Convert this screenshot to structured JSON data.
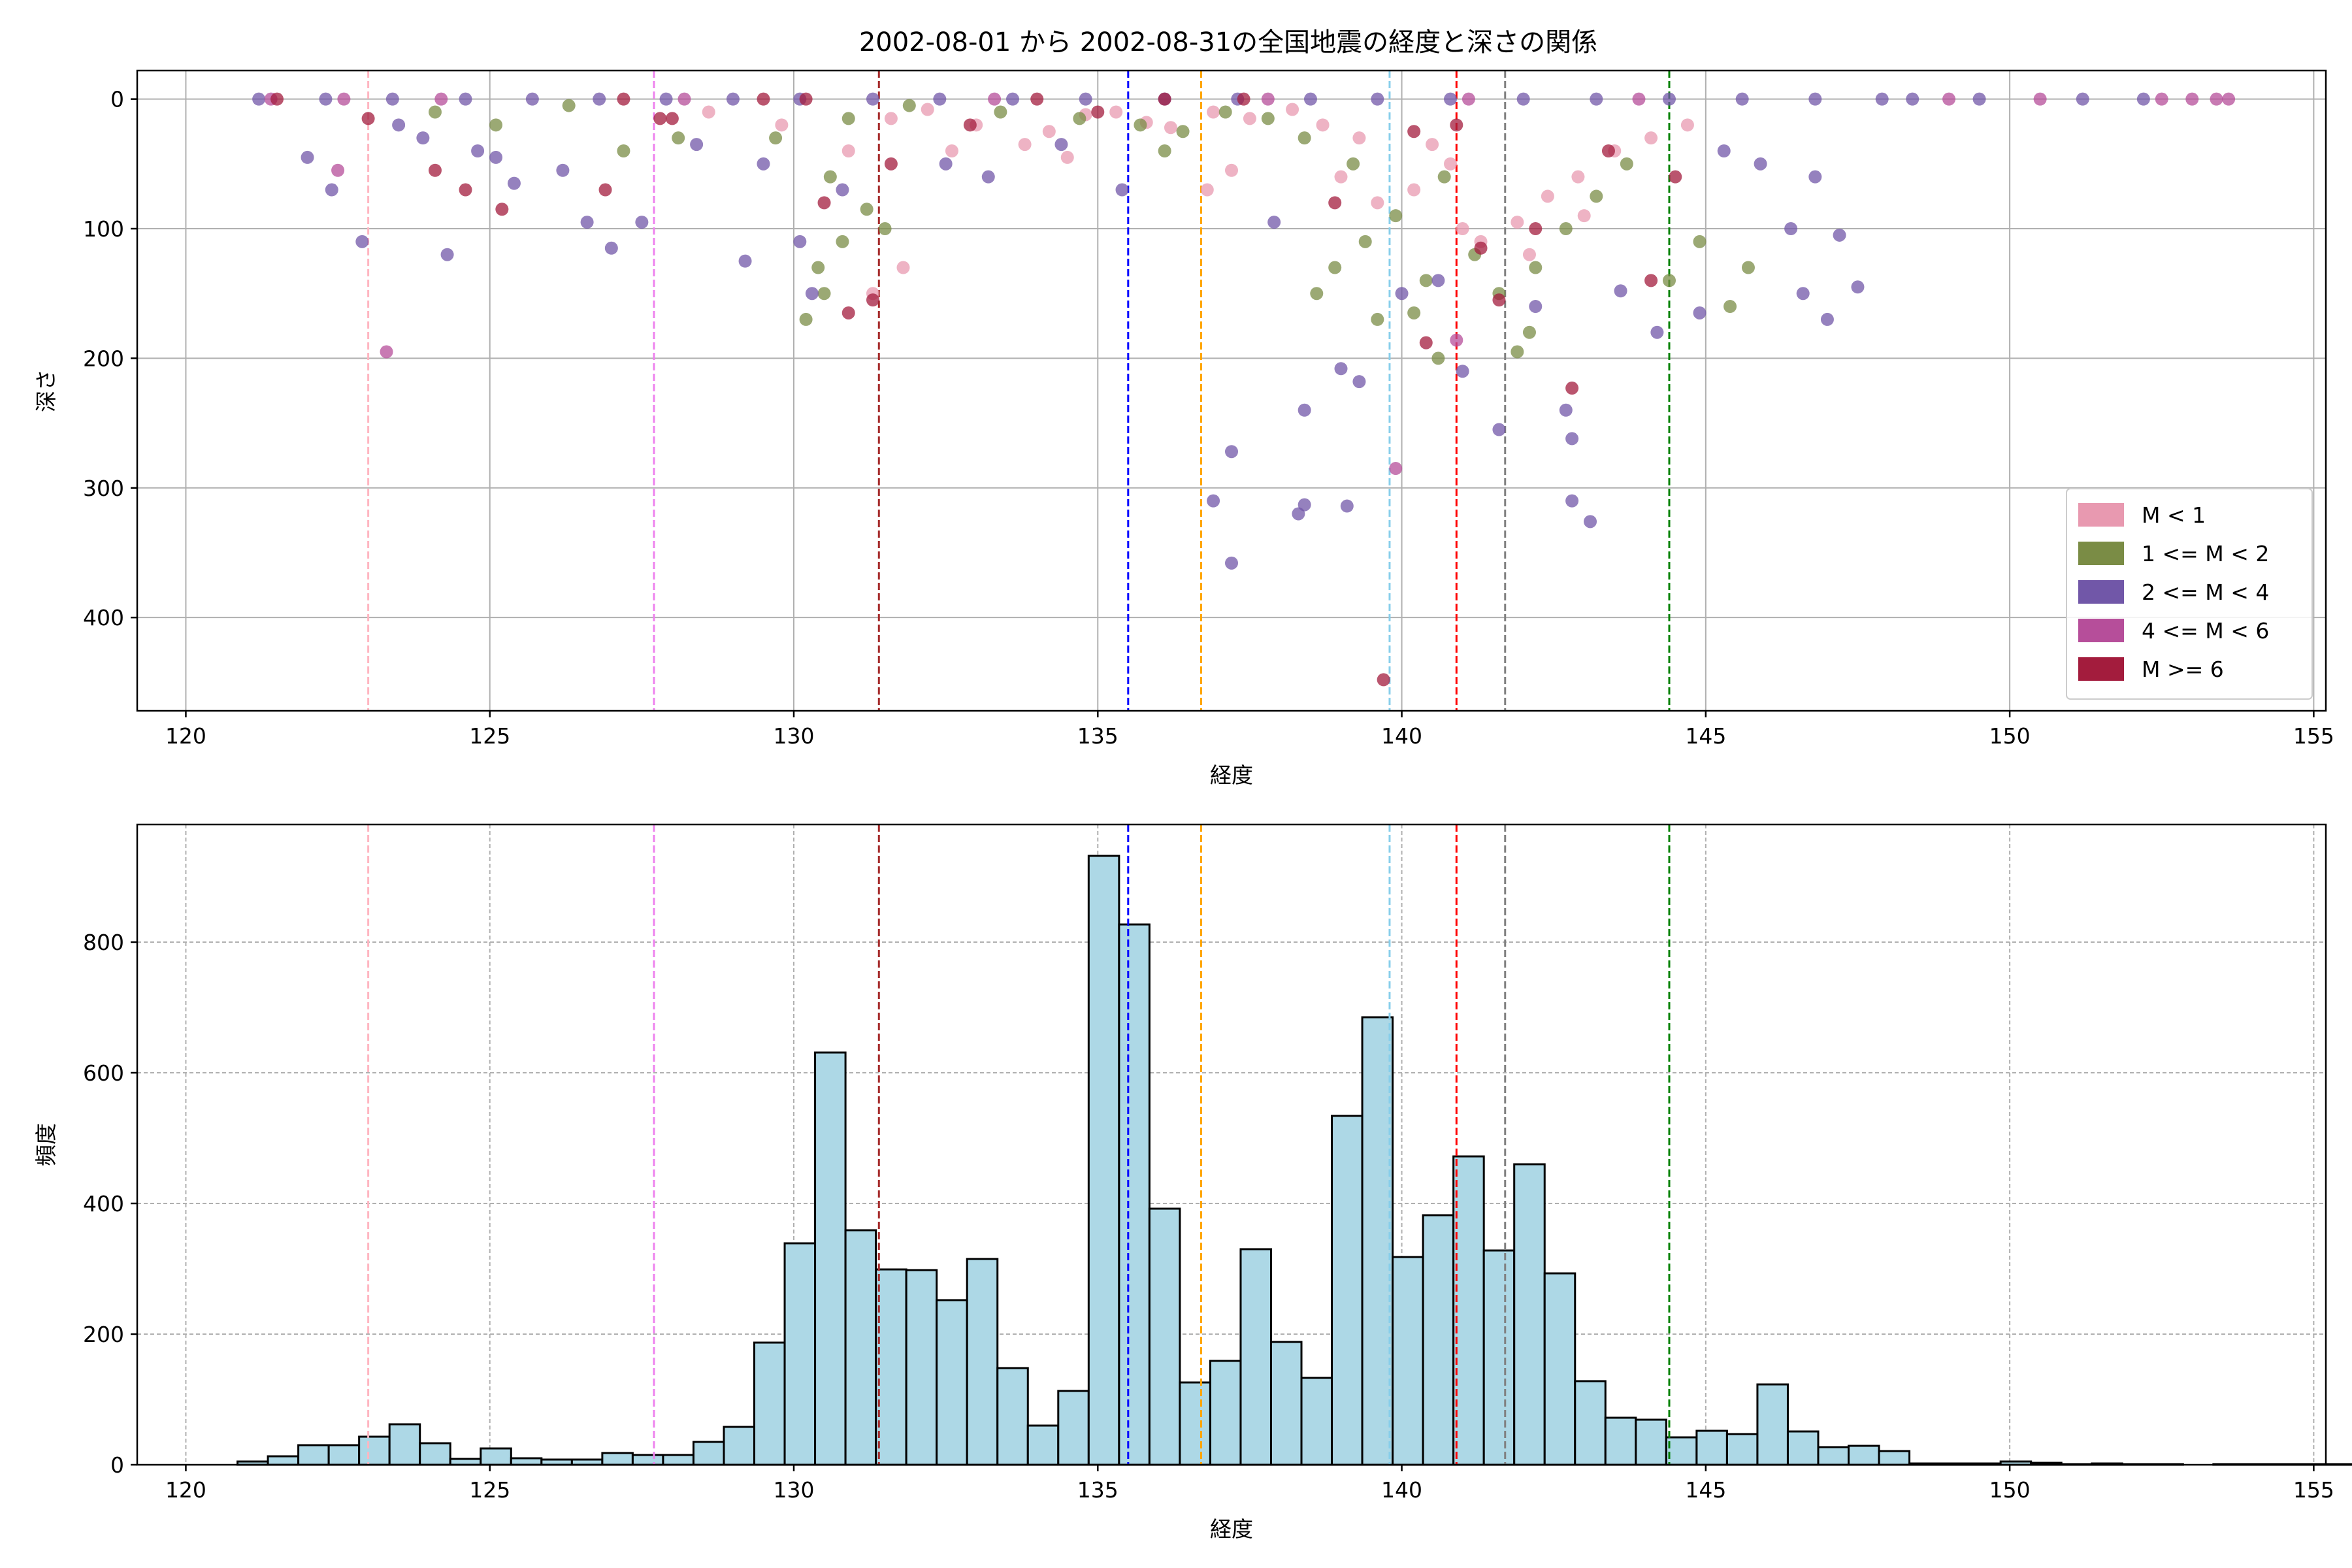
{
  "title": "2002-08-01 から 2002-08-31の全国地震の経度と深さの関係",
  "colors": {
    "m_lt1": "#e899b0",
    "m_1_2": "#7a8c45",
    "m_2_4": "#7157a8",
    "m_4_6": "#b64e9a",
    "m_ge6": "#a31c3d",
    "hist_fill": "#add8e6",
    "hist_edge": "#000000"
  },
  "chart_data": [
    {
      "type": "scatter",
      "xlabel": "経度",
      "ylabel": "深さ",
      "xlim": [
        119.2,
        155.2
      ],
      "ylim": [
        472,
        -22
      ],
      "y_inverted": true,
      "xticks": [
        120,
        125,
        130,
        135,
        140,
        145,
        150,
        155
      ],
      "yticks": [
        0,
        100,
        200,
        300,
        400
      ],
      "grid": true,
      "legend_position": "lower right",
      "legend": [
        "M < 1",
        "1 <= M < 2",
        "2 <= M < 4",
        "4 <= M < 6",
        "M >= 6"
      ],
      "vlines": [
        {
          "x": 123.0,
          "color": "#ffb6c1"
        },
        {
          "x": 127.7,
          "color": "#ee82ee"
        },
        {
          "x": 131.4,
          "color": "#a52a2a"
        },
        {
          "x": 135.5,
          "color": "#0000ff"
        },
        {
          "x": 136.7,
          "color": "#ffa500"
        },
        {
          "x": 139.8,
          "color": "#87ceeb"
        },
        {
          "x": 140.9,
          "color": "#ff0000"
        },
        {
          "x": 141.7,
          "color": "#808080"
        },
        {
          "x": 144.4,
          "color": "#008000"
        }
      ],
      "series": [
        {
          "name": "M < 1",
          "color": "#e899b0",
          "points": [
            [
              131.6,
              15
            ],
            [
              132.2,
              8
            ],
            [
              133.0,
              20
            ],
            [
              134.2,
              25
            ],
            [
              134.8,
              12
            ],
            [
              135.3,
              10
            ],
            [
              135.8,
              18
            ],
            [
              136.2,
              22
            ],
            [
              136.9,
              10
            ],
            [
              137.5,
              15
            ],
            [
              138.2,
              8
            ],
            [
              139.0,
              60
            ],
            [
              139.6,
              80
            ],
            [
              140.2,
              70
            ],
            [
              140.8,
              50
            ],
            [
              141.3,
              110
            ],
            [
              141.9,
              95
            ],
            [
              142.4,
              75
            ],
            [
              142.9,
              60
            ],
            [
              143.5,
              40
            ],
            [
              144.1,
              30
            ],
            [
              144.7,
              20
            ],
            [
              131.8,
              130
            ],
            [
              130.9,
              40
            ],
            [
              129.8,
              20
            ],
            [
              128.6,
              10
            ],
            [
              136.8,
              70
            ],
            [
              137.2,
              55
            ],
            [
              141.0,
              100
            ],
            [
              142.1,
              120
            ],
            [
              143.0,
              90
            ],
            [
              140.5,
              35
            ],
            [
              139.3,
              30
            ],
            [
              138.7,
              20
            ],
            [
              131.3,
              150
            ],
            [
              132.6,
              40
            ],
            [
              133.8,
              35
            ],
            [
              134.5,
              45
            ]
          ]
        },
        {
          "name": "1 <= M < 2",
          "color": "#7a8c45",
          "points": [
            [
              130.2,
              170
            ],
            [
              130.5,
              150
            ],
            [
              130.4,
              130
            ],
            [
              130.8,
              110
            ],
            [
              131.5,
              100
            ],
            [
              131.2,
              85
            ],
            [
              130.6,
              60
            ],
            [
              129.7,
              30
            ],
            [
              130.9,
              15
            ],
            [
              131.9,
              5
            ],
            [
              133.4,
              10
            ],
            [
              134.7,
              15
            ],
            [
              135.7,
              20
            ],
            [
              136.4,
              25
            ],
            [
              137.1,
              10
            ],
            [
              138.6,
              150
            ],
            [
              138.9,
              130
            ],
            [
              139.4,
              110
            ],
            [
              139.9,
              90
            ],
            [
              140.4,
              140
            ],
            [
              140.7,
              60
            ],
            [
              141.2,
              120
            ],
            [
              141.6,
              150
            ],
            [
              142.2,
              130
            ],
            [
              142.7,
              100
            ],
            [
              143.2,
              75
            ],
            [
              143.7,
              50
            ],
            [
              144.4,
              140
            ],
            [
              144.9,
              110
            ],
            [
              145.4,
              160
            ],
            [
              145.7,
              130
            ],
            [
              142.1,
              180
            ],
            [
              140.6,
              200
            ],
            [
              141.9,
              195
            ],
            [
              139.2,
              50
            ],
            [
              138.4,
              30
            ],
            [
              137.8,
              15
            ],
            [
              136.1,
              40
            ],
            [
              127.2,
              40
            ],
            [
              124.1,
              10
            ],
            [
              125.1,
              20
            ],
            [
              126.3,
              5
            ],
            [
              128.1,
              30
            ],
            [
              139.6,
              170
            ],
            [
              140.2,
              165
            ]
          ]
        },
        {
          "name": "2 <= M < 4",
          "color": "#7157a8",
          "points": [
            [
              121.2,
              0
            ],
            [
              122.3,
              0
            ],
            [
              123.4,
              0
            ],
            [
              124.6,
              0
            ],
            [
              125.7,
              0
            ],
            [
              126.8,
              0
            ],
            [
              127.9,
              0
            ],
            [
              129.0,
              0
            ],
            [
              130.1,
              0
            ],
            [
              131.3,
              0
            ],
            [
              132.4,
              0
            ],
            [
              133.6,
              0
            ],
            [
              134.8,
              0
            ],
            [
              136.1,
              0
            ],
            [
              137.3,
              0
            ],
            [
              138.5,
              0
            ],
            [
              139.6,
              0
            ],
            [
              140.8,
              0
            ],
            [
              142.0,
              0
            ],
            [
              143.2,
              0
            ],
            [
              144.4,
              0
            ],
            [
              145.6,
              0
            ],
            [
              146.8,
              0
            ],
            [
              147.9,
              0
            ],
            [
              148.4,
              0
            ],
            [
              149.5,
              0
            ],
            [
              151.2,
              0
            ],
            [
              152.2,
              0
            ],
            [
              122.0,
              45
            ],
            [
              122.4,
              70
            ],
            [
              122.9,
              110
            ],
            [
              123.5,
              20
            ],
            [
              123.9,
              30
            ],
            [
              124.3,
              120
            ],
            [
              124.8,
              40
            ],
            [
              125.1,
              45
            ],
            [
              125.4,
              65
            ],
            [
              126.2,
              55
            ],
            [
              126.6,
              95
            ],
            [
              127.0,
              115
            ],
            [
              127.5,
              95
            ],
            [
              128.4,
              35
            ],
            [
              129.2,
              125
            ],
            [
              129.5,
              50
            ],
            [
              130.1,
              110
            ],
            [
              130.3,
              150
            ],
            [
              130.8,
              70
            ],
            [
              132.5,
              50
            ],
            [
              133.2,
              60
            ],
            [
              134.4,
              35
            ],
            [
              135.4,
              70
            ],
            [
              136.9,
              310
            ],
            [
              137.2,
              272
            ],
            [
              137.2,
              358
            ],
            [
              138.3,
              320
            ],
            [
              138.4,
              313
            ],
            [
              139.1,
              314
            ],
            [
              139.0,
              208
            ],
            [
              139.3,
              218
            ],
            [
              140.0,
              150
            ],
            [
              140.6,
              140
            ],
            [
              141.0,
              210
            ],
            [
              141.6,
              255
            ],
            [
              142.2,
              160
            ],
            [
              142.7,
              240
            ],
            [
              142.8,
              262
            ],
            [
              142.8,
              310
            ],
            [
              143.1,
              326
            ],
            [
              143.6,
              148
            ],
            [
              144.2,
              180
            ],
            [
              144.9,
              165
            ],
            [
              145.3,
              40
            ],
            [
              145.9,
              50
            ],
            [
              146.4,
              100
            ],
            [
              146.8,
              60
            ],
            [
              147.2,
              105
            ],
            [
              147.5,
              145
            ],
            [
              146.6,
              150
            ],
            [
              147.0,
              170
            ],
            [
              138.4,
              240
            ],
            [
              137.9,
              95
            ]
          ]
        },
        {
          "name": "4 <= M < 6",
          "color": "#b64e9a",
          "points": [
            [
              121.4,
              0
            ],
            [
              122.6,
              0
            ],
            [
              124.2,
              0
            ],
            [
              128.2,
              0
            ],
            [
              133.3,
              0
            ],
            [
              137.8,
              0
            ],
            [
              141.1,
              0
            ],
            [
              143.9,
              0
            ],
            [
              149.0,
              0
            ],
            [
              150.5,
              0
            ],
            [
              152.5,
              0
            ],
            [
              153.0,
              0
            ],
            [
              153.4,
              0
            ],
            [
              153.6,
              0
            ],
            [
              122.5,
              55
            ],
            [
              123.3,
              195
            ],
            [
              139.9,
              285
            ],
            [
              140.9,
              186
            ]
          ]
        },
        {
          "name": "M >= 6",
          "color": "#a31c3d",
          "points": [
            [
              121.5,
              0
            ],
            [
              123.0,
              15
            ],
            [
              124.1,
              55
            ],
            [
              124.6,
              70
            ],
            [
              125.2,
              85
            ],
            [
              127.2,
              0
            ],
            [
              128.0,
              15
            ],
            [
              129.5,
              0
            ],
            [
              130.2,
              0
            ],
            [
              130.5,
              80
            ],
            [
              130.9,
              165
            ],
            [
              131.3,
              155
            ],
            [
              131.6,
              50
            ],
            [
              132.9,
              20
            ],
            [
              134.0,
              0
            ],
            [
              135.0,
              10
            ],
            [
              136.1,
              0
            ],
            [
              137.4,
              0
            ],
            [
              138.9,
              80
            ],
            [
              139.7,
              448
            ],
            [
              140.4,
              188
            ],
            [
              140.9,
              20
            ],
            [
              141.6,
              155
            ],
            [
              142.2,
              100
            ],
            [
              142.8,
              223
            ],
            [
              143.4,
              40
            ],
            [
              144.1,
              140
            ],
            [
              144.5,
              60
            ],
            [
              141.3,
              115
            ],
            [
              140.2,
              25
            ],
            [
              126.9,
              70
            ],
            [
              127.8,
              15
            ]
          ]
        }
      ]
    },
    {
      "type": "bar",
      "xlabel": "経度",
      "ylabel": "頻度",
      "xlim": [
        119.2,
        155.2
      ],
      "ylim": [
        0,
        980
      ],
      "xticks": [
        120,
        125,
        130,
        135,
        140,
        145,
        150,
        155
      ],
      "yticks": [
        0,
        200,
        400,
        600,
        800
      ],
      "grid": true,
      "bin_start": 120.85,
      "bin_width": 0.5,
      "values": [
        5,
        13,
        30,
        30,
        43,
        62,
        33,
        9,
        25,
        10,
        8,
        8,
        18,
        15,
        15,
        35,
        58,
        187,
        339,
        631,
        359,
        299,
        298,
        252,
        315,
        148,
        60,
        113,
        932,
        827,
        392,
        126,
        159,
        330,
        188,
        133,
        534,
        685,
        318,
        382,
        472,
        328,
        460,
        293,
        128,
        72,
        69,
        42,
        52,
        47,
        123,
        51,
        27,
        29,
        21,
        2,
        2,
        2,
        5,
        3,
        1,
        2,
        1,
        1,
        0,
        1,
        1,
        1,
        1,
        1,
        1,
        1,
        1,
        1,
        1,
        1
      ],
      "vlines": [
        {
          "x": 123.0,
          "color": "#ffb6c1"
        },
        {
          "x": 127.7,
          "color": "#ee82ee"
        },
        {
          "x": 131.4,
          "color": "#a52a2a"
        },
        {
          "x": 135.5,
          "color": "#0000ff"
        },
        {
          "x": 136.7,
          "color": "#ffa500"
        },
        {
          "x": 139.8,
          "color": "#87ceeb"
        },
        {
          "x": 140.9,
          "color": "#ff0000"
        },
        {
          "x": 141.7,
          "color": "#808080"
        },
        {
          "x": 144.4,
          "color": "#008000"
        }
      ]
    }
  ]
}
